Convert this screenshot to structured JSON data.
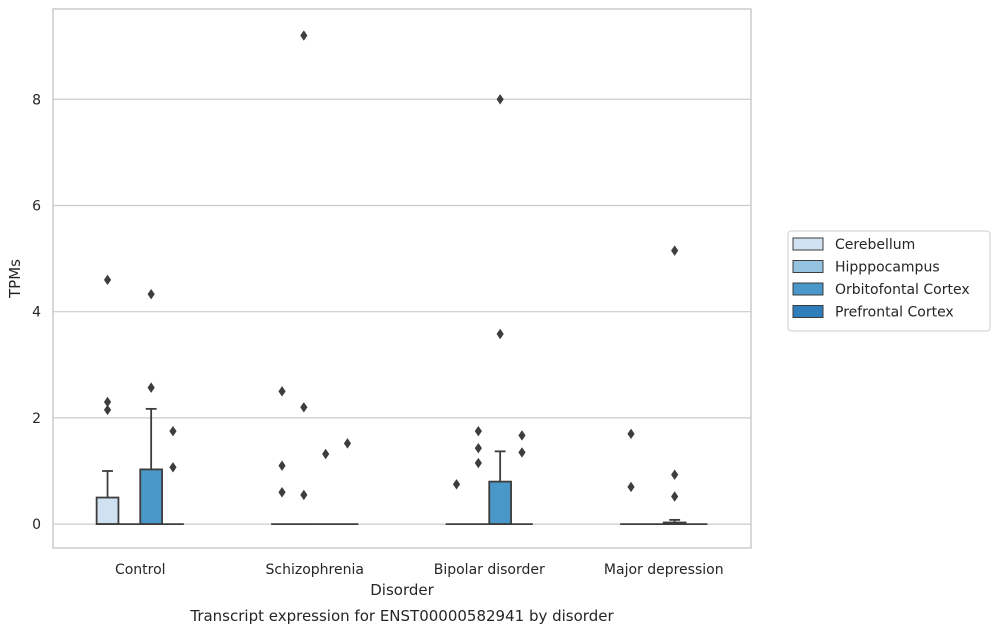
{
  "chart_data": {
    "type": "box",
    "title": "",
    "xlabel": "Disorder",
    "ylabel": "TPMs",
    "caption": "Transcript expression for ENST00000582941 by disorder",
    "categories": [
      "Control",
      "Schizophrenia",
      "Bipolar disorder",
      "Major depression"
    ],
    "ylim": [
      -0.45,
      9.7
    ],
    "yticks": [
      0,
      2,
      4,
      6,
      8
    ],
    "grid": "horizontal",
    "legend_position": "right",
    "series": [
      {
        "name": "Cerebellum",
        "color": "#d0e1f2",
        "boxes": [
          {
            "q1": 0,
            "median": 0,
            "q3": 0.5,
            "whisker_low": 0,
            "whisker_high": 1.0,
            "outliers": [
              2.15,
              2.3,
              4.6
            ]
          },
          {
            "q1": 0,
            "median": 0,
            "q3": 0,
            "whisker_low": 0,
            "whisker_high": 0,
            "outliers": [
              0.6,
              1.1,
              2.5
            ]
          },
          {
            "q1": 0,
            "median": 0,
            "q3": 0,
            "whisker_low": 0,
            "whisker_high": 0,
            "outliers": [
              0.75
            ]
          },
          {
            "q1": 0,
            "median": 0,
            "q3": 0,
            "whisker_low": 0,
            "whisker_high": 0,
            "outliers": [
              0.7,
              1.7
            ]
          }
        ]
      },
      {
        "name": "Hipppocampus",
        "color": "#94c4df",
        "boxes": [
          {
            "q1": 0,
            "median": 0,
            "q3": 0,
            "whisker_low": 0,
            "whisker_high": 0,
            "outliers": []
          },
          {
            "q1": 0,
            "median": 0,
            "q3": 0,
            "whisker_low": 0,
            "whisker_high": 0,
            "outliers": [
              0.55,
              2.2,
              9.2
            ]
          },
          {
            "q1": 0,
            "median": 0,
            "q3": 0,
            "whisker_low": 0,
            "whisker_high": 0,
            "outliers": [
              1.15,
              1.43,
              1.75
            ]
          },
          {
            "q1": 0,
            "median": 0,
            "q3": 0,
            "whisker_low": 0,
            "whisker_high": 0,
            "outliers": []
          }
        ]
      },
      {
        "name": "Orbitofontal Cortex",
        "color": "#4a98c9",
        "boxes": [
          {
            "q1": 0,
            "median": 0,
            "q3": 1.03,
            "whisker_low": 0,
            "whisker_high": 2.17,
            "outliers": [
              2.57,
              4.33
            ]
          },
          {
            "q1": 0,
            "median": 0,
            "q3": 0,
            "whisker_low": 0,
            "whisker_high": 0,
            "outliers": [
              1.32
            ]
          },
          {
            "q1": 0,
            "median": 0,
            "q3": 0.8,
            "whisker_low": 0,
            "whisker_high": 1.37,
            "outliers": [
              3.58,
              8.0
            ]
          },
          {
            "q1": 0,
            "median": 0,
            "q3": 0.03,
            "whisker_low": 0,
            "whisker_high": 0.08,
            "outliers": [
              0.52,
              0.93,
              5.15
            ]
          }
        ]
      },
      {
        "name": "Prefrontal Cortex",
        "color": "#2e7ebc",
        "boxes": [
          {
            "q1": 0,
            "median": 0,
            "q3": 0,
            "whisker_low": 0,
            "whisker_high": 0,
            "outliers": [
              1.07,
              1.75
            ]
          },
          {
            "q1": 0,
            "median": 0,
            "q3": 0,
            "whisker_low": 0,
            "whisker_high": 0,
            "outliers": [
              1.52
            ]
          },
          {
            "q1": 0,
            "median": 0,
            "q3": 0,
            "whisker_low": 0,
            "whisker_high": 0,
            "outliers": [
              1.35,
              1.67
            ]
          },
          {
            "q1": 0,
            "median": 0,
            "q3": 0,
            "whisker_low": 0,
            "whisker_high": 0,
            "outliers": []
          }
        ]
      }
    ]
  }
}
